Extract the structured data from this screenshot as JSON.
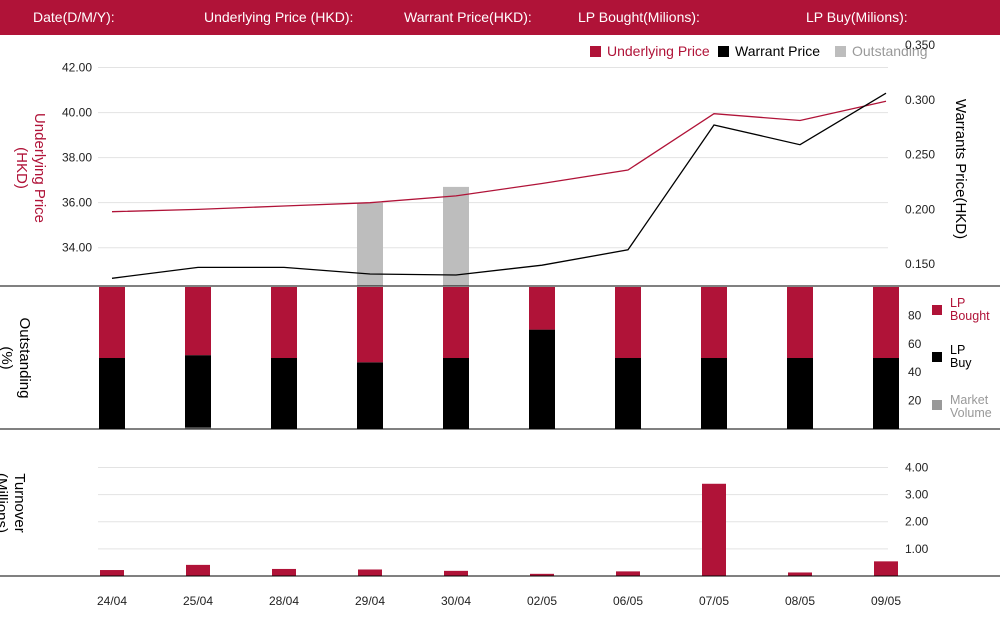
{
  "header": {
    "date_label": "Date(D/M/Y):",
    "underlying_label": "Underlying Price (HKD):",
    "warrant_label": "Warrant  Price(HKD):",
    "lp_bought_label": "LP Bought(Milions):",
    "lp_buy_label": "LP Buy(Milions):"
  },
  "legend": {
    "underlying": "Underlying Price",
    "warrant": "Warrant  Price",
    "outstanding": "Outstanding"
  },
  "axis_titles": {
    "left_top_1": "Underlying Price",
    "left_top_2": "(HKD)",
    "right_top": "Warrants  Price(HKD)",
    "left_mid_1": "Outstanding",
    "left_mid_2": "(%)",
    "left_bottom_1": "Turnover",
    "left_bottom_2": "(Millions)"
  },
  "side_legend": {
    "lp_bought_1": "LP",
    "lp_bought_2": "Bought",
    "lp_buy_1": "LP",
    "lp_buy_2": "Buy",
    "market_volume_1": "Market",
    "market_volume_2": "Volume"
  },
  "colors": {
    "header_bg": "#b01338",
    "underlying": "#b01338",
    "warrant": "#000000",
    "outstanding": "#bdbdbd",
    "lp_bought": "#b01338",
    "lp_buy": "#000000",
    "market_volume": "#999999",
    "turnover": "#b01338",
    "grid": "#e3e3e3"
  },
  "chart_data": [
    {
      "type": "line",
      "categories": [
        "24/04",
        "25/04",
        "28/04",
        "29/04",
        "30/04",
        "02/05",
        "06/05",
        "07/05",
        "08/05",
        "09/05"
      ],
      "series": [
        {
          "name": "Underlying Price",
          "axis": "left",
          "values": [
            35.6,
            35.7,
            35.85,
            36.0,
            36.3,
            36.85,
            37.45,
            39.95,
            39.65,
            40.5
          ]
        },
        {
          "name": "Warrant  Price",
          "axis": "right",
          "values": [
            0.137,
            0.147,
            0.147,
            0.141,
            0.14,
            0.149,
            0.163,
            0.277,
            0.259,
            0.306
          ]
        },
        {
          "name": "Outstanding",
          "axis": "left",
          "type": "bar",
          "values": [
            null,
            null,
            null,
            36.0,
            36.7,
            null,
            null,
            null,
            null,
            null
          ]
        }
      ],
      "left_ticks": [
        "34.00",
        "36.00",
        "38.00",
        "40.00",
        "42.00"
      ],
      "left_tick_values": [
        34,
        36,
        38,
        40,
        42
      ],
      "right_ticks": [
        "0.150",
        "0.200",
        "0.250",
        "0.300",
        "0.350"
      ],
      "right_tick_values": [
        0.15,
        0.2,
        0.25,
        0.3,
        0.35
      ],
      "ylim_left": [
        32.3,
        43.0
      ],
      "ylim_right": [
        0.13,
        0.35
      ],
      "grid": true,
      "legend_position": "top-right"
    },
    {
      "type": "bar",
      "categories": [
        "24/04",
        "25/04",
        "28/04",
        "29/04",
        "30/04",
        "02/05",
        "06/05",
        "07/05",
        "08/05",
        "09/05"
      ],
      "series": [
        {
          "name": "LP Buy",
          "values": [
            50,
            51,
            50,
            47,
            50,
            70,
            50,
            50,
            50,
            50
          ]
        },
        {
          "name": "LP Bought",
          "values": [
            50,
            49,
            50,
            53,
            50,
            30,
            50,
            50,
            50,
            50
          ]
        },
        {
          "name": "Market Volume",
          "values": [
            0,
            1,
            0,
            0,
            0,
            0,
            0,
            0,
            0,
            0
          ]
        }
      ],
      "right_ticks": [
        "20",
        "40",
        "60",
        "80"
      ],
      "right_tick_values": [
        20,
        40,
        60,
        80
      ],
      "ylim": [
        0,
        100
      ]
    },
    {
      "type": "bar",
      "categories": [
        "24/04",
        "25/04",
        "28/04",
        "29/04",
        "30/04",
        "02/05",
        "06/05",
        "07/05",
        "08/05",
        "09/05"
      ],
      "series": [
        {
          "name": "Turnover",
          "values": [
            0.22,
            0.41,
            0.26,
            0.24,
            0.19,
            0.08,
            0.17,
            3.4,
            0.13,
            0.54
          ]
        }
      ],
      "right_ticks": [
        "1.00",
        "2.00",
        "3.00",
        "4.00"
      ],
      "right_tick_values": [
        1,
        2,
        3,
        4
      ],
      "ylim": [
        0,
        4.35
      ],
      "grid": true
    }
  ]
}
